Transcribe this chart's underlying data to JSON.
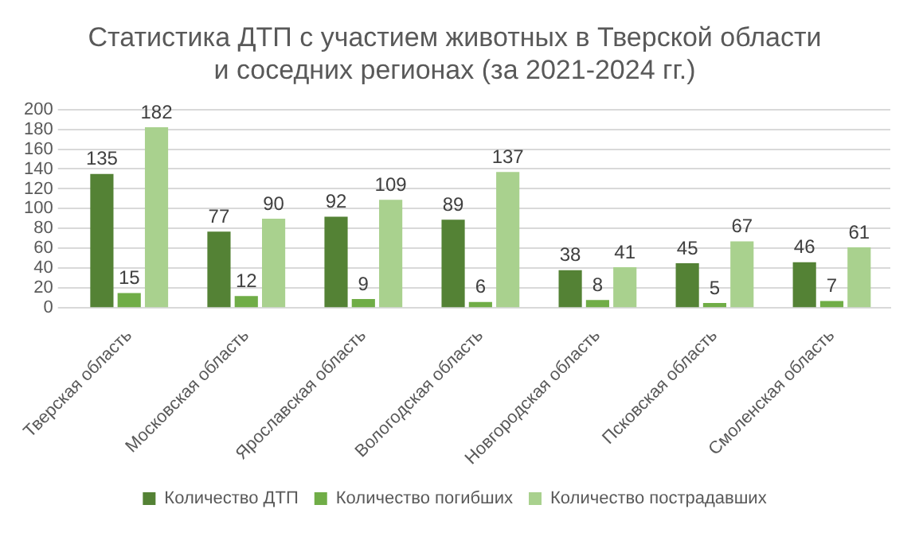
{
  "chart_data": {
    "type": "bar",
    "title": "Статистика ДТП с участием животных в Тверской области и соседних регионах (за 2021-2024 гг.)",
    "categories": [
      "Тверская область",
      "Московская область",
      "Ярославская область",
      "Вологодская область",
      "Новгородская область",
      "Псковская область",
      "Смоленская область"
    ],
    "series": [
      {
        "name": "Количество ДТП",
        "color": "#548235",
        "values": [
          135,
          77,
          92,
          89,
          38,
          45,
          46
        ]
      },
      {
        "name": "Количество погибших",
        "color": "#70ad47",
        "values": [
          15,
          12,
          9,
          6,
          8,
          5,
          7
        ]
      },
      {
        "name": "Количество пострадавших",
        "color": "#a9d18e",
        "values": [
          182,
          90,
          109,
          137,
          41,
          67,
          61
        ]
      }
    ],
    "ylim": [
      0,
      200
    ],
    "yticks": [
      0,
      20,
      40,
      60,
      80,
      100,
      120,
      140,
      160,
      180,
      200
    ],
    "grid": "y",
    "legend": "bottom",
    "data_labels": true
  }
}
